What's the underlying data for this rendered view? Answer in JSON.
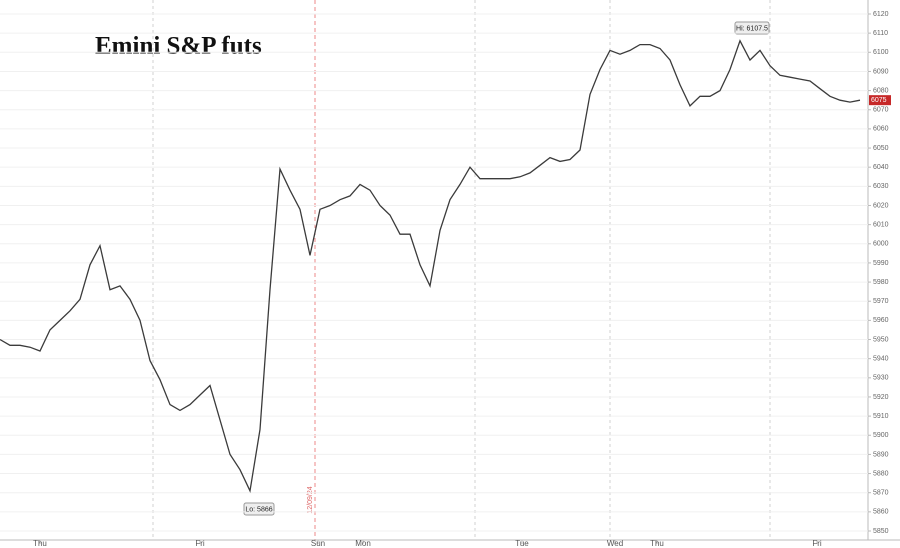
{
  "chart_data": {
    "type": "line",
    "title": "Emini S&P futs",
    "series": [
      {
        "name": "Emini S&P futs",
        "color": "#3b3b3b",
        "values": [
          5950,
          5947,
          5947,
          5946,
          5944,
          5955,
          5960,
          5965,
          5971,
          5989,
          5999,
          5976,
          5978,
          5971,
          5960,
          5939,
          5929,
          5916,
          5913,
          5916,
          5921,
          5926,
          5908,
          5890,
          5882,
          5871,
          5903,
          5976,
          6039,
          6028,
          6018,
          5994,
          6018,
          6020,
          6023,
          6025,
          6031,
          6028,
          6020,
          6015,
          6005,
          6005,
          5989,
          5978,
          6007,
          6023,
          6031,
          6040,
          6034,
          6034,
          6034,
          6034,
          6035,
          6037,
          6041,
          6045,
          6043,
          6044,
          6049,
          6078,
          6091,
          6101,
          6099,
          6101,
          6104,
          6104,
          6102,
          6096,
          6083,
          6072,
          6077,
          6077,
          6080,
          6091,
          6106,
          6096,
          6101,
          6093,
          6088,
          6087,
          6086,
          6085,
          6081,
          6077,
          6075,
          6074,
          6075
        ]
      }
    ],
    "xlim": [
      0,
      86.8
    ],
    "xticks": [
      {
        "value": 4,
        "label": "Thu"
      },
      {
        "value": 20,
        "label": "Fri"
      },
      {
        "value": 31.8,
        "label": "Sun"
      },
      {
        "value": 36.3,
        "label": "Mon"
      },
      {
        "value": 52.2,
        "label": "Tue"
      },
      {
        "value": 61.5,
        "label": "Wed"
      },
      {
        "value": 65.7,
        "label": "Thu"
      },
      {
        "value": 81.7,
        "label": "Fri"
      }
    ],
    "ylim": [
      5850,
      6120
    ],
    "yticks": [
      5850,
      5860,
      5870,
      5880,
      5890,
      5900,
      5910,
      5920,
      5930,
      5940,
      5950,
      5960,
      5970,
      5980,
      5990,
      6000,
      6010,
      6020,
      6030,
      6040,
      6050,
      6060,
      6070,
      6080,
      6090,
      6100,
      6110,
      6120
    ],
    "grid": true,
    "annotations": {
      "high": "Hi: 6107.5",
      "low": "Lo: 5866",
      "date_marker": "12/09/24"
    }
  }
}
